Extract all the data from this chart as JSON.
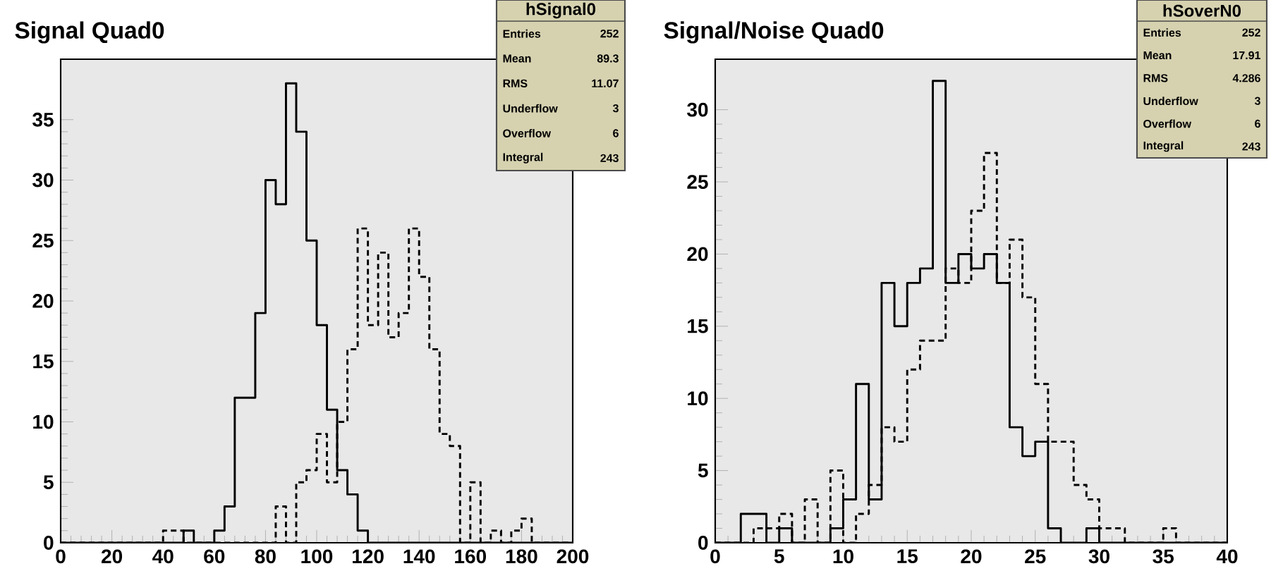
{
  "chart_data": [
    {
      "type": "histogram",
      "title": "Signal Quad0",
      "bins": [
        0,
        4,
        8,
        12,
        16,
        20,
        24,
        28,
        32,
        36,
        40,
        44,
        48,
        52,
        56,
        60,
        64,
        68,
        72,
        76,
        80,
        84,
        88,
        92,
        96,
        100,
        104,
        108,
        112,
        116,
        120,
        124,
        128,
        132,
        136,
        140,
        144,
        148,
        152,
        156,
        160,
        164,
        168,
        172,
        176,
        180,
        184,
        188,
        192,
        196,
        200
      ],
      "series": [
        {
          "color": "#000000",
          "line_style": "solid",
          "values": [
            0,
            0,
            0,
            0,
            0,
            0,
            0,
            0,
            0,
            0,
            0,
            0,
            1,
            0,
            0,
            1,
            3,
            12,
            12,
            19,
            30,
            28,
            38,
            34,
            25,
            18,
            11,
            6,
            4,
            1,
            0,
            0,
            0,
            0,
            0,
            0,
            0,
            0,
            0,
            0,
            0,
            0,
            0,
            0,
            0,
            0,
            0,
            0,
            0,
            0
          ]
        },
        {
          "color": "#000000",
          "line_style": "dashed",
          "values": [
            0,
            0,
            0,
            0,
            0,
            0,
            0,
            0,
            0,
            0,
            1,
            1,
            0,
            0,
            0,
            0,
            0,
            0,
            0,
            0,
            0,
            3,
            0,
            5,
            6,
            9,
            5,
            10,
            16,
            26,
            18,
            24,
            17,
            19,
            26,
            22,
            16,
            9,
            8,
            0,
            5,
            0,
            1,
            0,
            1,
            2,
            0,
            0,
            0,
            0
          ]
        }
      ],
      "xlim": [
        0,
        200
      ],
      "xticks": [
        0,
        20,
        40,
        60,
        80,
        100,
        120,
        140,
        160,
        180,
        200
      ],
      "ylim": [
        0,
        40
      ],
      "yticks": [
        0,
        5,
        10,
        15,
        20,
        25,
        30,
        35
      ],
      "annotations": [
        "hSignal0",
        "Entries",
        "252",
        "Mean",
        "89.3",
        "RMS",
        "11.07",
        "Underflow",
        "3",
        "Overflow",
        "6",
        "Integral",
        "243"
      ]
    },
    {
      "type": "histogram",
      "title": "Signal/Noise Quad0",
      "bins": [
        0,
        1,
        2,
        3,
        4,
        5,
        6,
        7,
        8,
        9,
        10,
        11,
        12,
        13,
        14,
        15,
        16,
        17,
        18,
        19,
        20,
        21,
        22,
        23,
        24,
        25,
        26,
        27,
        28,
        29,
        30,
        31,
        32,
        33,
        34,
        35,
        36,
        37,
        38,
        39,
        40
      ],
      "series": [
        {
          "color": "#000000",
          "line_style": "solid",
          "values": [
            0,
            0,
            2,
            2,
            0,
            1,
            0,
            0,
            0,
            1,
            3,
            11,
            3,
            18,
            15,
            18,
            19,
            32,
            18,
            20,
            19,
            20,
            18,
            8,
            6,
            7,
            1,
            0,
            0,
            1,
            0,
            0,
            0,
            0,
            0,
            0,
            0,
            0,
            0,
            0
          ]
        },
        {
          "color": "#000000",
          "line_style": "dashed",
          "values": [
            0,
            0,
            0,
            1,
            1,
            2,
            0,
            3,
            0,
            5,
            0,
            2,
            4,
            8,
            7,
            12,
            14,
            14,
            19,
            18,
            23,
            27,
            18,
            21,
            17,
            11,
            7,
            7,
            4,
            3,
            1,
            1,
            0,
            0,
            0,
            1,
            0,
            0,
            0,
            0
          ]
        }
      ],
      "xlim": [
        0,
        40
      ],
      "xticks": [
        0,
        5,
        10,
        15,
        20,
        25,
        30,
        35,
        40
      ],
      "ylim": [
        0,
        33.5
      ],
      "yticks": [
        0,
        5,
        10,
        15,
        20,
        25,
        30
      ],
      "annotations": [
        "hSoverN0",
        "Entries",
        "252",
        "Mean",
        "17.91",
        "RMS",
        "4.286",
        "Underflow",
        "3",
        "Overflow",
        "6",
        "Integral",
        "243"
      ]
    }
  ]
}
